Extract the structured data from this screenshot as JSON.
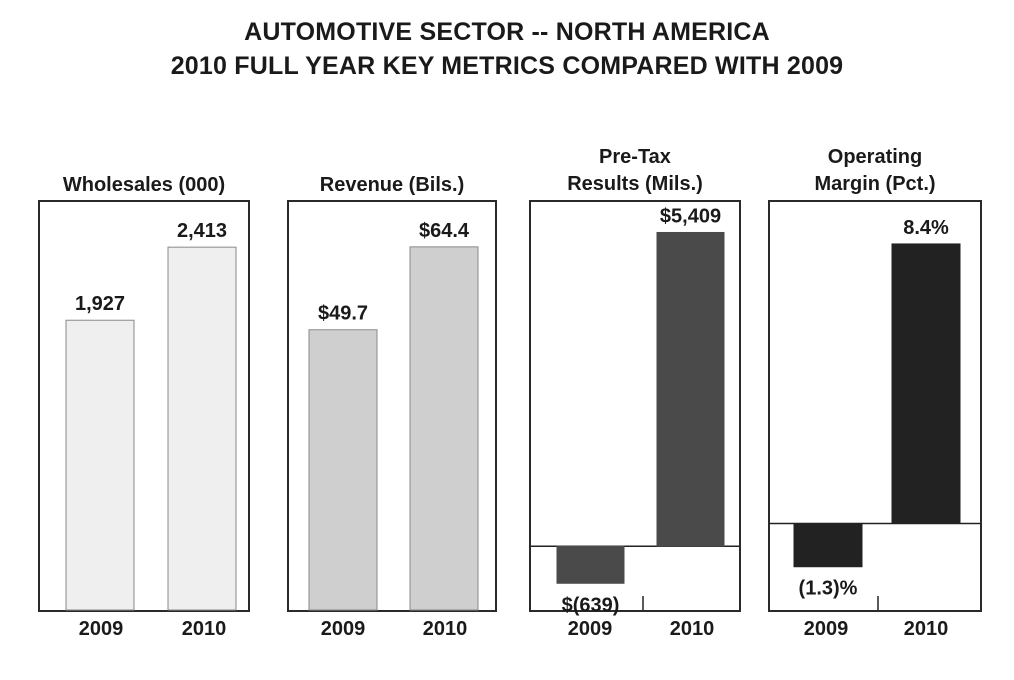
{
  "title_line1": "AUTOMOTIVE SECTOR -- NORTH AMERICA",
  "title_line2": "2010 FULL YEAR KEY METRICS COMPARED WITH 2009",
  "chart_data": [
    {
      "type": "bar",
      "title": "Wholesales (000)",
      "categories": [
        "2009",
        "2010"
      ],
      "values": [
        1927,
        2413
      ],
      "value_labels": [
        "1,927",
        "2,413"
      ],
      "ylim": [
        0,
        2700
      ],
      "bar_color": "#efefef"
    },
    {
      "type": "bar",
      "title": "Revenue (Bils.)",
      "categories": [
        "2009",
        "2010"
      ],
      "values": [
        49.7,
        64.4
      ],
      "value_labels": [
        "$49.7",
        "$64.4"
      ],
      "ylim": [
        0,
        72
      ],
      "bar_color": "#cfcfcf"
    },
    {
      "type": "bar",
      "title_lines": [
        "Pre-Tax",
        "Results (Mils.)"
      ],
      "categories": [
        "2009",
        "2010"
      ],
      "values": [
        -639,
        5409
      ],
      "value_labels": [
        "$(639)",
        "$5,409"
      ],
      "ylim": [
        -1100,
        5900
      ],
      "bar_color": "#4a4a4a"
    },
    {
      "type": "bar",
      "title_lines": [
        "Operating",
        "Margin (Pct.)"
      ],
      "categories": [
        "2009",
        "2010"
      ],
      "values": [
        -1.3,
        8.4
      ],
      "value_labels": [
        "(1.3)%",
        "8.4%"
      ],
      "ylim": [
        -2.6,
        9.6
      ],
      "bar_color": "#222222"
    }
  ]
}
